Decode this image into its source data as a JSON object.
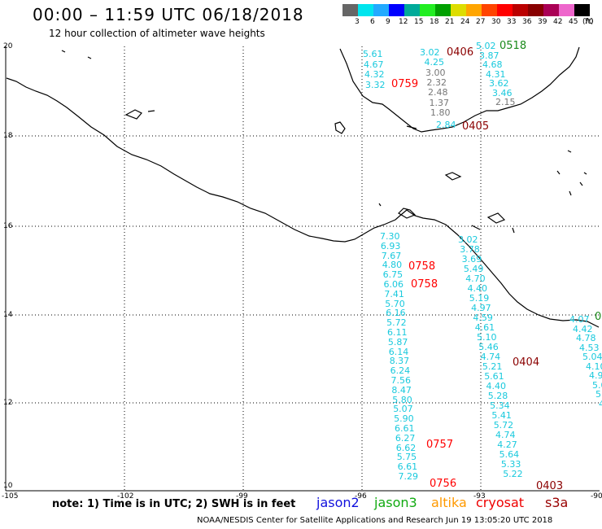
{
  "title": "00:00 – 11:59 UTC 06/18/2018",
  "subtitle": "12 hour collection of altimeter wave heights",
  "legend": {
    "colors": [
      "#666666",
      "#00e5ee",
      "#22aaff",
      "#0000ff",
      "#00aa99",
      "#22ee22",
      "#00a000",
      "#dddd00",
      "#ffa500",
      "#ff4400",
      "#ff0000",
      "#bb0000",
      "#880000",
      "#aa0055",
      "#ee66cc",
      "#000000"
    ],
    "ticks": [
      "3",
      "6",
      "9",
      "12",
      "15",
      "18",
      "21",
      "24",
      "27",
      "30",
      "33",
      "36",
      "39",
      "42",
      "45",
      "70",
      "(ft)"
    ]
  },
  "map": {
    "lon_labels": [
      "-105",
      "-102",
      "-99",
      "-96",
      "-93",
      "-90"
    ],
    "lat_labels": [
      "20",
      "18",
      "16",
      "14",
      "12",
      "10"
    ]
  },
  "tracks": {
    "gulf_a": [
      "5.61",
      "4.67",
      "4.32",
      "3.32"
    ],
    "gulf_a_time": "0759",
    "gulf_b": [
      "3.02",
      "4.25",
      "3.00",
      "2.32",
      "2.48",
      "1.37",
      "1.80"
    ],
    "gulf_b_time": "0406",
    "gulf_b_bottom": "2.84",
    "gulf_c": [
      "5.02",
      "3.87",
      "4.68",
      "4.31",
      "3.62",
      "3.46",
      "2.15"
    ],
    "gulf_c_time": "0518",
    "gulf_c_time2": "0405",
    "pac_west": [
      "7.30",
      "6.93",
      "7.67",
      "4.80",
      "6.75",
      "6.06",
      "7.41",
      "5.70",
      "6.16",
      "5.72",
      "6.11",
      "5.87",
      "6.14",
      "8.37",
      "6.24",
      "7.56",
      "8.47",
      "5.80",
      "5.07",
      "5.90",
      "6.61",
      "6.27",
      "6.62",
      "5.75",
      "6.61",
      "7.29"
    ],
    "pac_west_times": [
      "0758",
      "0758",
      "0757",
      "0756"
    ],
    "pac_mid": [
      "3.02",
      "3.78",
      "3.69",
      "5.49",
      "4.70",
      "4.40",
      "5.19",
      "4.97",
      "4.59",
      "4.61",
      "5.10",
      "5.46",
      "4.74",
      "5.21",
      "5.61",
      "4.40",
      "5.28",
      "5.34",
      "5.41",
      "5.72",
      "4.74",
      "4.27",
      "5.64",
      "5.33",
      "5.22"
    ],
    "pac_mid_times": [
      "0404",
      "0403"
    ],
    "pac_east": [
      "4.07",
      "4.42",
      "4.78",
      "4.53",
      "5.04",
      "4.10",
      "4.90",
      "5.0",
      "5.",
      "4"
    ],
    "pac_east_time": "0"
  },
  "note": "note:  1) Time is in UTC;  2) SWH is in feet",
  "satellites": [
    {
      "name": "jason2",
      "color": "#1010dd"
    },
    {
      "name": "jason3",
      "color": "#11aa11"
    },
    {
      "name": "altika",
      "color": "#ff9900"
    },
    {
      "name": "cryosat",
      "color": "#ee0000"
    },
    {
      "name": "s3a",
      "color": "#990000"
    }
  ],
  "footer": "NOAA/NESDIS Center for Satellite Applications and Research    Jun 19 13:05:20 UTC 2018"
}
